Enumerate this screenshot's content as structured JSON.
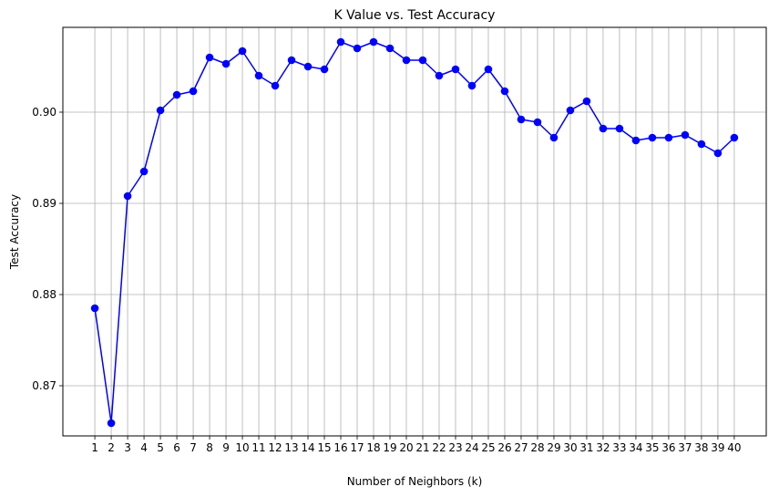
{
  "chart_data": {
    "type": "line",
    "title": "K Value vs. Test Accuracy",
    "xlabel": "Number of Neighbors (k)",
    "ylabel": "Test Accuracy",
    "x": [
      1,
      2,
      3,
      4,
      5,
      6,
      7,
      8,
      9,
      10,
      11,
      12,
      13,
      14,
      15,
      16,
      17,
      18,
      19,
      20,
      21,
      22,
      23,
      24,
      25,
      26,
      27,
      28,
      29,
      30,
      31,
      32,
      33,
      34,
      35,
      36,
      37,
      38,
      39,
      40
    ],
    "x_tick_labels": [
      "1",
      "2",
      "3",
      "4",
      "5",
      "6",
      "7",
      "8",
      "9",
      "10",
      "11",
      "12",
      "13",
      "14",
      "15",
      "16",
      "17",
      "18",
      "19",
      "20",
      "21",
      "22",
      "23",
      "24",
      "25",
      "26",
      "27",
      "28",
      "29",
      "30",
      "31",
      "32",
      "33",
      "34",
      "35",
      "36",
      "37",
      "38",
      "39",
      "40"
    ],
    "y_ticks": [
      0.87,
      0.88,
      0.89,
      0.9
    ],
    "y_tick_labels": [
      "0.87",
      "0.88",
      "0.89",
      "0.90"
    ],
    "xlim": [
      -0.95,
      41.95
    ],
    "ylim": [
      0.8645,
      0.9093
    ],
    "series": [
      {
        "color": "#0000ff",
        "marker": "circle",
        "values": [
          0.8785,
          0.8659,
          0.8908,
          0.8935,
          0.9002,
          0.9019,
          0.9023,
          0.906,
          0.9053,
          0.9067,
          0.904,
          0.9029,
          0.9057,
          0.905,
          0.9047,
          0.9077,
          0.907,
          0.9077,
          0.907,
          0.9057,
          0.9057,
          0.904,
          0.9047,
          0.9029,
          0.9047,
          0.9023,
          0.8992,
          0.8989,
          0.8972,
          0.9002,
          0.9012,
          0.8982,
          0.8982,
          0.8969,
          0.8972,
          0.8972,
          0.8975,
          0.8965,
          0.8955,
          0.8972
        ]
      }
    ],
    "grid": true
  }
}
